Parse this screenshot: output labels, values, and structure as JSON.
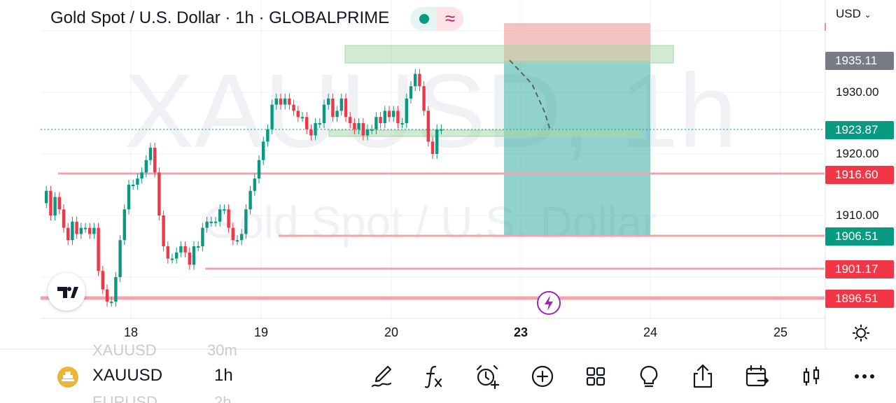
{
  "header": {
    "title": "Gold Spot / U.S. Dollar · 1h · GLOBALPRIME",
    "currency": "USD"
  },
  "watermark": {
    "symbol": "XAUUSD, 1h",
    "description": "Gold Spot / U.S. Dollar"
  },
  "price_axis": {
    "labels": [
      "1930.00",
      "1920.00",
      "1910.00"
    ],
    "tags": [
      {
        "value": "1935.11",
        "color": "#787b86"
      },
      {
        "value": "1923.87",
        "color": "#089981"
      },
      {
        "value": "1916.60",
        "color": "#f23645"
      },
      {
        "value": "1906.51",
        "color": "#089981"
      },
      {
        "value": "1901.17",
        "color": "#f23645"
      },
      {
        "value": "1896.51",
        "color": "#f23645"
      }
    ]
  },
  "time_axis": {
    "labels": [
      "18",
      "19",
      "20",
      "23",
      "24",
      "25"
    ],
    "bold_label": "23"
  },
  "colors": {
    "up": "#089981",
    "down": "#f23645",
    "level_line": "#f7a8ae",
    "zone_green": "#c8e6c9",
    "target_zone": "#26a69a",
    "stop_zone": "#ef9a9a"
  },
  "icons": [
    "tradingview-logo-icon",
    "flash-icon",
    "gear-icon",
    "brush-icon",
    "function-icon",
    "alarm-add-icon",
    "plus-circle-icon",
    "grid-icon",
    "lightbulb-icon",
    "share-icon",
    "calendar-swap-icon",
    "candles-icon",
    "more-icon"
  ],
  "toolbar": {
    "symbol": "XAUUSD",
    "interval": "1h",
    "ghost_prev_symbol": "XAUUSD",
    "ghost_prev_interval": "30m",
    "ghost_next_symbol": "EURUSD",
    "ghost_next_interval": "2h"
  }
}
